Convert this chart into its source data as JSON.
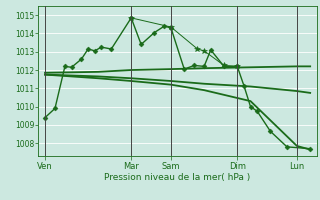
{
  "background_color": "#cce8e0",
  "grid_color": "#ffffff",
  "line_color": "#1a6b1a",
  "marker_color": "#1a6b1a",
  "xlabel_text": "Pression niveau de la mer( hPa )",
  "ylim": [
    1007.3,
    1015.5
  ],
  "yticks": [
    1008,
    1009,
    1010,
    1011,
    1012,
    1013,
    1014,
    1015
  ],
  "xlim": [
    0,
    42
  ],
  "day_labels": [
    "Ven",
    "Mar",
    "Sam",
    "Dim",
    "Lun"
  ],
  "day_positions": [
    1,
    14,
    20,
    30,
    39
  ],
  "vline_positions": [
    1,
    14,
    20,
    30,
    39
  ],
  "minor_vline_step": 2.333,
  "series": [
    {
      "x": [
        1,
        2.5,
        4,
        5,
        6.5,
        7.5,
        8.5,
        9.5,
        11,
        14,
        15.5,
        17.5,
        19,
        20,
        22,
        23.5,
        25,
        26,
        28,
        30,
        31,
        32,
        33,
        35,
        37.5,
        41
      ],
      "y": [
        1009.4,
        1009.9,
        1012.2,
        1012.15,
        1012.6,
        1013.15,
        1013.05,
        1013.25,
        1013.15,
        1014.85,
        1013.4,
        1014.05,
        1014.4,
        1014.3,
        1012.05,
        1012.25,
        1012.2,
        1013.1,
        1012.2,
        1012.2,
        1011.15,
        1010.0,
        1009.75,
        1008.65,
        1007.8,
        1007.7
      ],
      "marker": "D",
      "marker_size": 2.5,
      "linewidth": 1.0,
      "zorder": 5
    },
    {
      "x": [
        1,
        9,
        14,
        20,
        25,
        32,
        39,
        41
      ],
      "y": [
        1011.85,
        1011.9,
        1012.0,
        1012.05,
        1012.1,
        1012.15,
        1012.2,
        1012.2
      ],
      "marker": null,
      "marker_size": 0,
      "linewidth": 1.3,
      "zorder": 4
    },
    {
      "x": [
        1,
        9,
        14,
        20,
        25,
        32,
        39,
        41
      ],
      "y": [
        1011.75,
        1011.65,
        1011.55,
        1011.4,
        1011.25,
        1011.1,
        1010.85,
        1010.75
      ],
      "marker": null,
      "marker_size": 0,
      "linewidth": 1.3,
      "zorder": 4
    },
    {
      "x": [
        1,
        9,
        14,
        20,
        25,
        32,
        39,
        41
      ],
      "y": [
        1011.75,
        1011.55,
        1011.4,
        1011.2,
        1010.9,
        1010.3,
        1007.85,
        1007.65
      ],
      "marker": null,
      "marker_size": 0,
      "linewidth": 1.3,
      "zorder": 4
    },
    {
      "x": [
        14,
        20,
        24,
        25,
        28,
        30
      ],
      "y": [
        1014.85,
        1014.35,
        1013.15,
        1013.05,
        1012.25,
        1012.2
      ],
      "marker": "*",
      "marker_size": 4,
      "linewidth": 0.7,
      "zorder": 3
    }
  ]
}
